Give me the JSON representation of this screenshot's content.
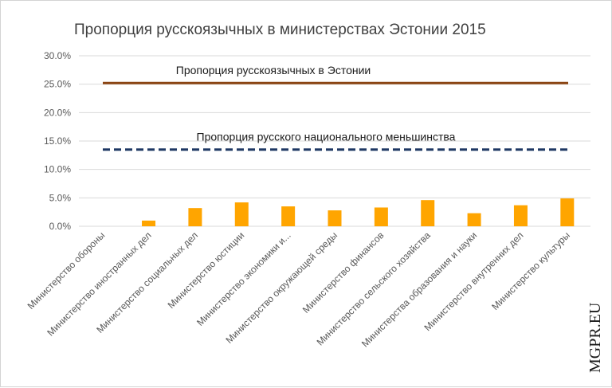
{
  "chart_data": {
    "type": "bar",
    "title": "Пропорция русскоязычных в министерствах Эстонии 2015",
    "categories": [
      "Министерство обороны",
      "Министерство иностранных дел",
      "Министерство социальных дел",
      "Министерство юстиции",
      "Министерство экономики и...",
      "Министерство окружающей среды",
      "Министерство финансов",
      "Министерство сельского хозяйства",
      "Министерства образования и науки",
      "Министерство внутренних дел",
      "Министерство культуры"
    ],
    "values": [
      0.0,
      1.0,
      3.2,
      4.2,
      3.5,
      2.8,
      3.3,
      4.6,
      2.3,
      3.7,
      4.9
    ],
    "value_unit": "%",
    "ylim": [
      0,
      30
    ],
    "yticks": [
      "0.0%",
      "5.0%",
      "10.0%",
      "15.0%",
      "20.0%",
      "25.0%",
      "30.0%"
    ],
    "grid": true,
    "bar_color": "#ffa500",
    "reference_lines": [
      {
        "label": "Пропорция русскоязычных в Эстонии",
        "value": 25.2,
        "style": "solid",
        "color": "#8b4513"
      },
      {
        "label": "Пропорция русского национального меньшинства",
        "value": 13.5,
        "style": "dashed",
        "color": "#1f3864"
      }
    ]
  },
  "watermark": "MGPR.EU"
}
